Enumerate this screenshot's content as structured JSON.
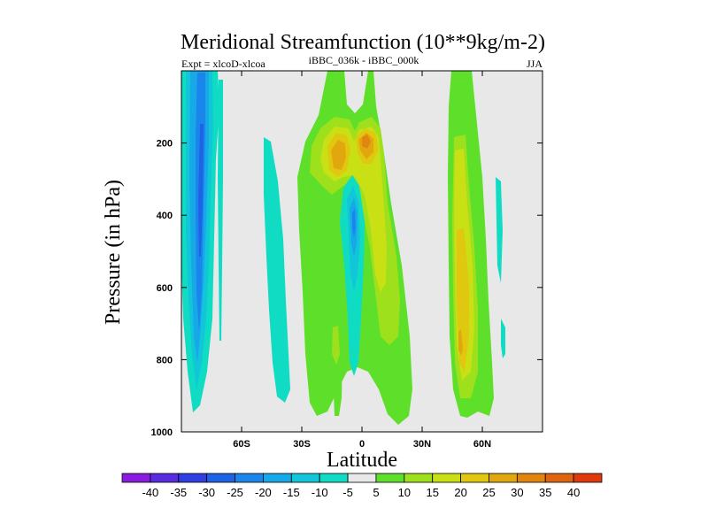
{
  "chart_data": {
    "type": "contour",
    "title": "Meridional Streamfunction (10**9kg/m-2)",
    "left_label": "Expt = xlcoD-xlcoa",
    "center_label": "iBBC_036k - iBBC_000k",
    "right_label": "JJA",
    "xlabel": "Latitude",
    "ylabel": "Pressure (in hPa)",
    "xlim": [
      -90,
      90
    ],
    "ylim": [
      1000,
      0
    ],
    "x_ticks": [
      {
        "value": -60,
        "label": "60S"
      },
      {
        "value": -30,
        "label": "30S"
      },
      {
        "value": 0,
        "label": "0"
      },
      {
        "value": 30,
        "label": "30N"
      },
      {
        "value": 60,
        "label": "60N"
      }
    ],
    "y_ticks": [
      {
        "value": 200,
        "label": "200"
      },
      {
        "value": 400,
        "label": "400"
      },
      {
        "value": 600,
        "label": "600"
      },
      {
        "value": 800,
        "label": "800"
      },
      {
        "value": 1000,
        "label": "1000"
      }
    ],
    "colorbar": {
      "labels": [
        "-40",
        "-35",
        "-30",
        "-25",
        "-20",
        "-15",
        "-10",
        "-5",
        "5",
        "10",
        "15",
        "20",
        "25",
        "30",
        "35",
        "40"
      ],
      "colors": [
        "#8a1be0",
        "#5a2ce0",
        "#2f3fe0",
        "#1e62e6",
        "#1a86ec",
        "#17a8e8",
        "#12c6d9",
        "#10dcc4",
        "#e8e8e8",
        "#5ee02a",
        "#9fe01c",
        "#c8e014",
        "#e0c810",
        "#e0a80e",
        "#e0860e",
        "#e0640e",
        "#e03a0c"
      ]
    },
    "series": [
      {
        "name": "SH polar negative cell",
        "value_range": [
          -25,
          -5
        ],
        "lat_range": [
          -88,
          -72
        ],
        "pressure_range": [
          0,
          980
        ]
      },
      {
        "name": "SH thin negative column",
        "value_range": [
          -10,
          -5
        ],
        "lat_range": [
          -70,
          -68
        ],
        "pressure_range": [
          40,
          780
        ]
      },
      {
        "name": "Mid-latitude negative band",
        "value_range": [
          -10,
          -5
        ],
        "lat_range": [
          -48,
          -38
        ],
        "pressure_range": [
          180,
          920
        ]
      },
      {
        "name": "Equatorial positive cell",
        "value_range": [
          5,
          30
        ],
        "lat_range": [
          -28,
          18
        ],
        "pressure_range": [
          0,
          980
        ]
      },
      {
        "name": "Equatorial negative core",
        "value_range": [
          -20,
          -5
        ],
        "lat_range": [
          -8,
          0
        ],
        "pressure_range": [
          280,
          880
        ]
      },
      {
        "name": "Southern-edge positive band",
        "value_range": [
          5,
          10
        ],
        "lat_range": [
          -18,
          -16
        ],
        "pressure_range": [
          300,
          1000
        ]
      },
      {
        "name": "NH positive cell",
        "value_range": [
          5,
          25
        ],
        "lat_range": [
          42,
          60
        ],
        "pressure_range": [
          0,
          1000
        ]
      },
      {
        "name": "NH small negative",
        "value_range": [
          -10,
          -5
        ],
        "lat_range": [
          62,
          66
        ],
        "pressure_range": [
          300,
          780
        ]
      }
    ]
  }
}
